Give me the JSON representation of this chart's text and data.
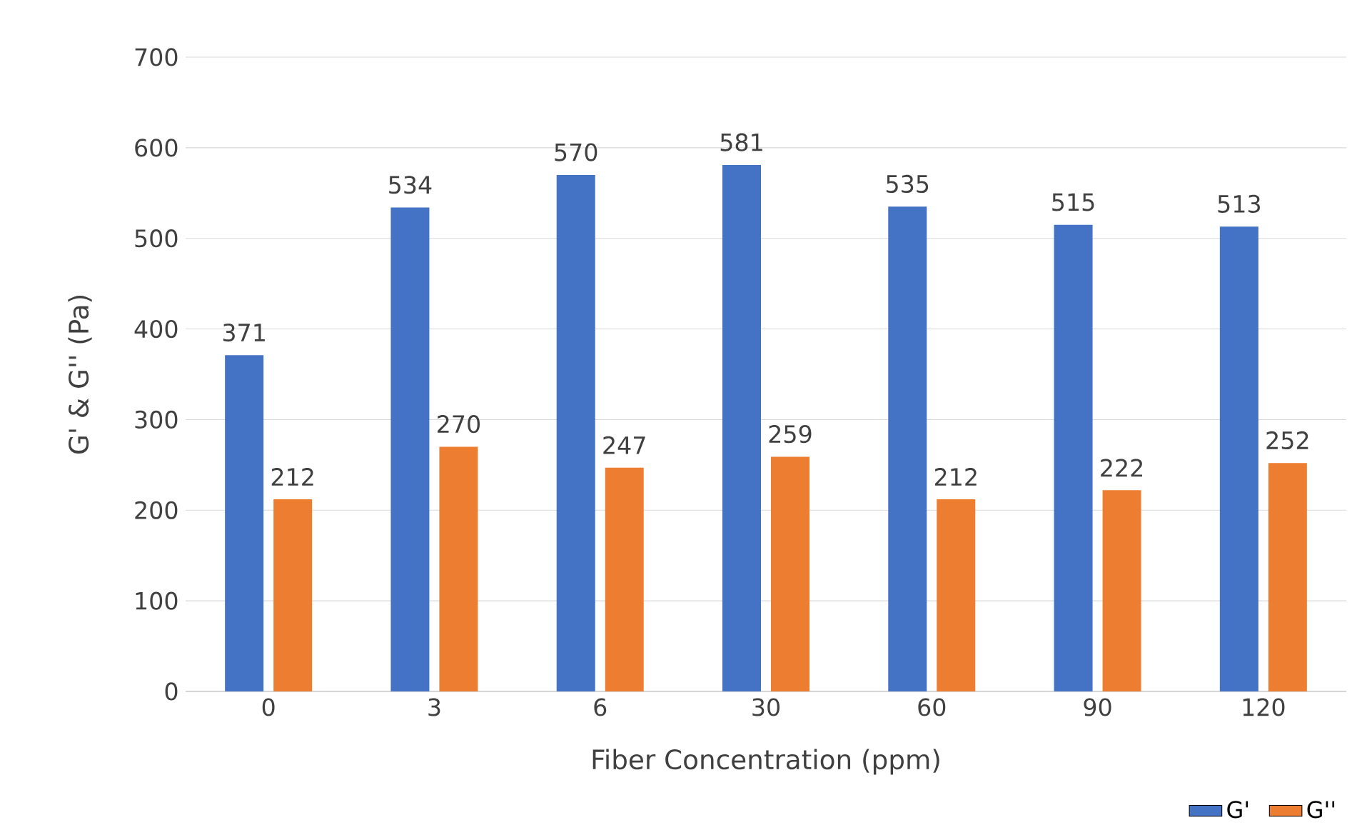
{
  "chart_data": {
    "type": "bar",
    "xlabel": "Fiber Concentration (ppm)",
    "ylabel": "G' & G'' (Pa)",
    "categories": [
      "0",
      "3",
      "6",
      "30",
      "60",
      "90",
      "120"
    ],
    "series": [
      {
        "name": "G'",
        "color": "#4472c4",
        "values": [
          371,
          534,
          570,
          581,
          535,
          515,
          513
        ]
      },
      {
        "name": "G''",
        "color": "#ed7d31",
        "values": [
          212,
          270,
          247,
          259,
          212,
          222,
          252
        ]
      }
    ],
    "ylim": [
      0,
      700
    ],
    "yticks": [
      0,
      100,
      200,
      300,
      400,
      500,
      600,
      700
    ],
    "grid": "y",
    "legend": "bottom right",
    "data_labels": true
  }
}
